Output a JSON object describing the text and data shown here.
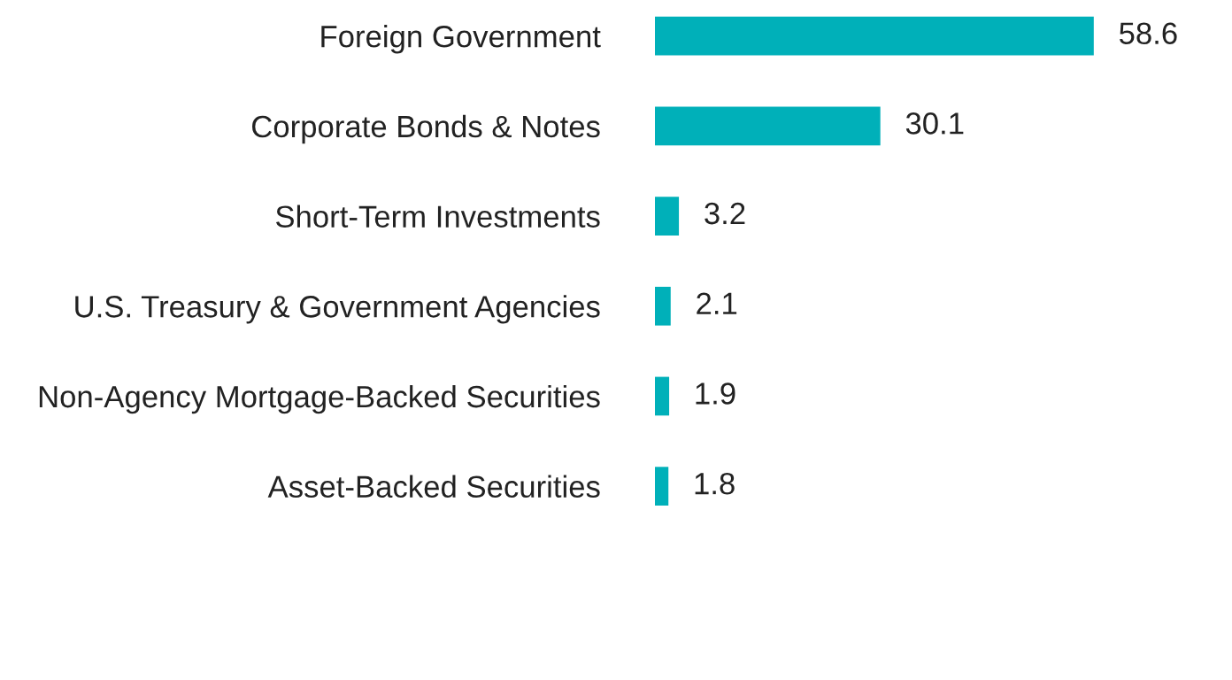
{
  "chart_data": {
    "type": "bar",
    "orientation": "horizontal",
    "categories": [
      "Foreign Government",
      "Corporate Bonds & Notes",
      "Short-Term Investments",
      "U.S. Treasury & Government Agencies",
      "Non-Agency Mortgage-Backed Securities",
      "Asset-Backed Securities"
    ],
    "values": [
      58.6,
      30.1,
      3.2,
      2.1,
      1.9,
      1.8
    ],
    "color": "#00b0b9",
    "data_labels": true,
    "grid": false,
    "legend": false,
    "tick_labels": "y"
  }
}
